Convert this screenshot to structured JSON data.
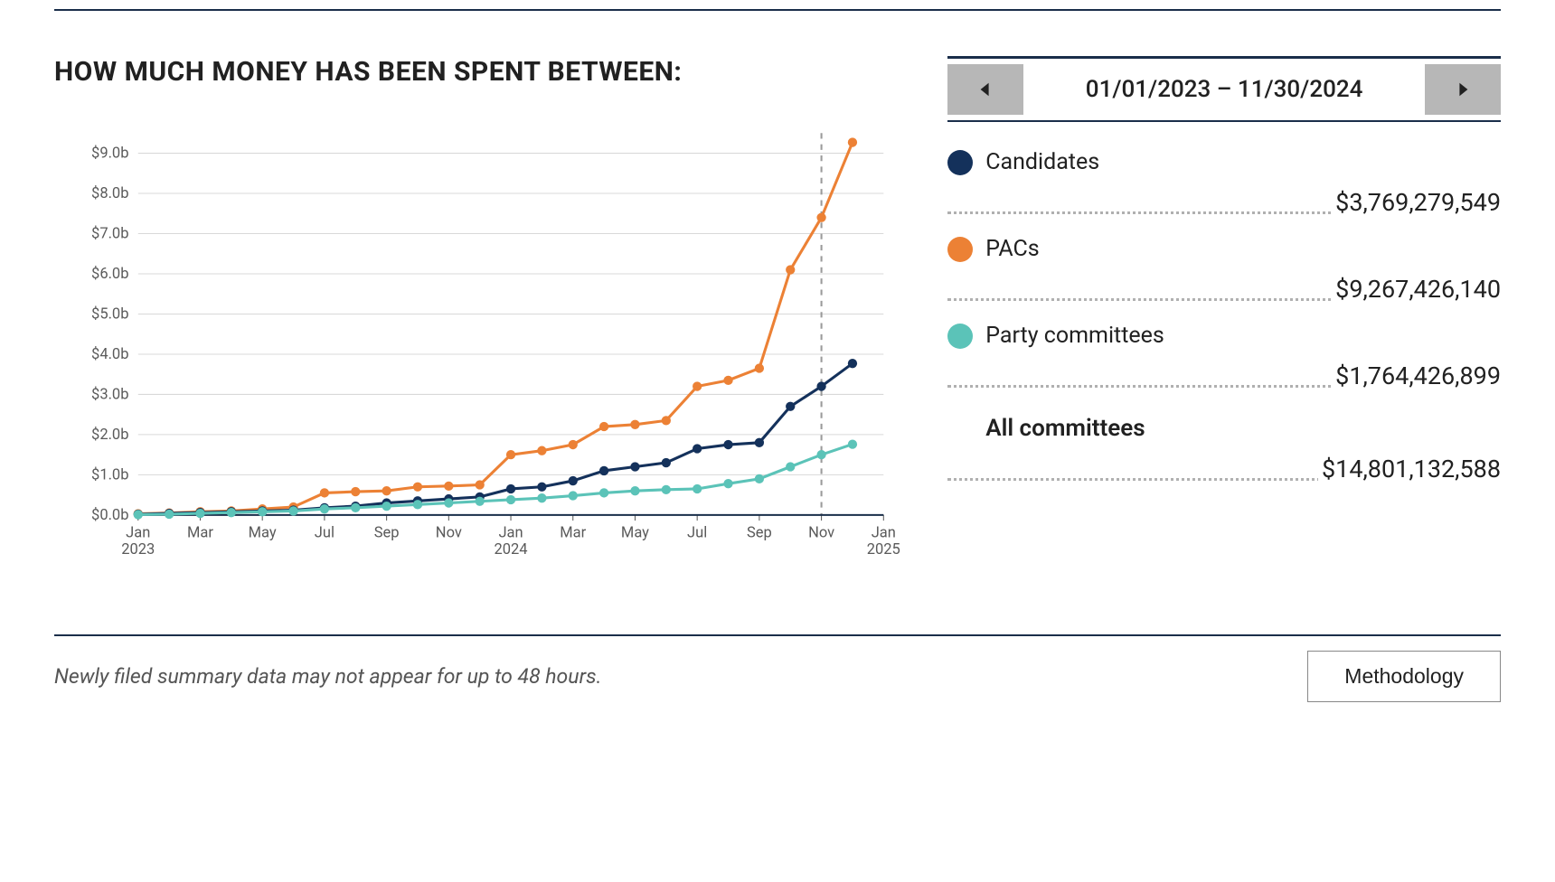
{
  "header": {
    "title": "HOW MUCH MONEY HAS BEEN SPENT BETWEEN:"
  },
  "date_nav": {
    "range_text": "01/01/2023 – 11/30/2024"
  },
  "chart": {
    "type": "line",
    "background_color": "#ffffff",
    "grid_color": "#d9d9d9",
    "axis_color": "#1a2e4a",
    "y": {
      "min": 0,
      "max": 9.5,
      "ticks": [
        0,
        1,
        2,
        3,
        4,
        5,
        6,
        7,
        8,
        9
      ],
      "tick_labels": [
        "$0.0b",
        "$1.0b",
        "$2.0b",
        "$3.0b",
        "$4.0b",
        "$5.0b",
        "$6.0b",
        "$7.0b",
        "$8.0b",
        "$9.0b"
      ],
      "label_fontsize": 16
    },
    "x": {
      "min": 0,
      "max": 24,
      "marker_at": 22,
      "ticks": [
        0,
        2,
        4,
        6,
        8,
        10,
        12,
        14,
        16,
        18,
        20,
        22,
        24
      ],
      "tick_labels": [
        "Jan",
        "Mar",
        "May",
        "Jul",
        "Sep",
        "Nov",
        "Jan",
        "Mar",
        "May",
        "Jul",
        "Sep",
        "Nov",
        "Jan"
      ],
      "tick_year_labels": {
        "0": "2023",
        "12": "2024",
        "24": "2025"
      }
    },
    "series": [
      {
        "name": "PACs",
        "color": "#ec8135",
        "line_width": 3,
        "marker_radius": 5,
        "points": [
          [
            0,
            0.03
          ],
          [
            1,
            0.05
          ],
          [
            2,
            0.08
          ],
          [
            3,
            0.1
          ],
          [
            4,
            0.15
          ],
          [
            5,
            0.2
          ],
          [
            6,
            0.55
          ],
          [
            7,
            0.58
          ],
          [
            8,
            0.6
          ],
          [
            9,
            0.7
          ],
          [
            10,
            0.72
          ],
          [
            11,
            0.75
          ],
          [
            12,
            1.5
          ],
          [
            13,
            1.6
          ],
          [
            14,
            1.75
          ],
          [
            15,
            2.2
          ],
          [
            16,
            2.25
          ],
          [
            17,
            2.35
          ],
          [
            18,
            3.2
          ],
          [
            19,
            3.35
          ],
          [
            20,
            3.65
          ],
          [
            21,
            6.1
          ],
          [
            22,
            7.4
          ],
          [
            23,
            9.27
          ]
        ]
      },
      {
        "name": "Candidates",
        "color": "#14315b",
        "line_width": 3,
        "marker_radius": 5,
        "points": [
          [
            0,
            0.02
          ],
          [
            1,
            0.04
          ],
          [
            2,
            0.06
          ],
          [
            3,
            0.08
          ],
          [
            4,
            0.1
          ],
          [
            5,
            0.12
          ],
          [
            6,
            0.18
          ],
          [
            7,
            0.22
          ],
          [
            8,
            0.3
          ],
          [
            9,
            0.35
          ],
          [
            10,
            0.4
          ],
          [
            11,
            0.45
          ],
          [
            12,
            0.65
          ],
          [
            13,
            0.7
          ],
          [
            14,
            0.85
          ],
          [
            15,
            1.1
          ],
          [
            16,
            1.2
          ],
          [
            17,
            1.3
          ],
          [
            18,
            1.65
          ],
          [
            19,
            1.75
          ],
          [
            20,
            1.8
          ],
          [
            21,
            2.7
          ],
          [
            22,
            3.2
          ],
          [
            23,
            3.77
          ]
        ]
      },
      {
        "name": "Party committees",
        "color": "#5bc3b8",
        "line_width": 3,
        "marker_radius": 5,
        "points": [
          [
            0,
            0.01
          ],
          [
            1,
            0.02
          ],
          [
            2,
            0.04
          ],
          [
            3,
            0.06
          ],
          [
            4,
            0.08
          ],
          [
            5,
            0.1
          ],
          [
            6,
            0.15
          ],
          [
            7,
            0.18
          ],
          [
            8,
            0.22
          ],
          [
            9,
            0.26
          ],
          [
            10,
            0.3
          ],
          [
            11,
            0.34
          ],
          [
            12,
            0.38
          ],
          [
            13,
            0.42
          ],
          [
            14,
            0.48
          ],
          [
            15,
            0.55
          ],
          [
            16,
            0.6
          ],
          [
            17,
            0.63
          ],
          [
            18,
            0.65
          ],
          [
            19,
            0.78
          ],
          [
            20,
            0.9
          ],
          [
            21,
            1.2
          ],
          [
            22,
            1.5
          ],
          [
            23,
            1.76
          ]
        ]
      }
    ]
  },
  "legend": {
    "items": [
      {
        "label": "Candidates",
        "color": "#14315b",
        "value": "$3,769,279,549"
      },
      {
        "label": "PACs",
        "color": "#ec8135",
        "value": "$9,267,426,140"
      },
      {
        "label": "Party committees",
        "color": "#5bc3b8",
        "value": "$1,764,426,899"
      }
    ],
    "total": {
      "label": "All committees",
      "value": "$14,801,132,588"
    }
  },
  "footer": {
    "note": "Newly filed summary data may not appear for up to 48 hours.",
    "methodology_label": "Methodology"
  }
}
